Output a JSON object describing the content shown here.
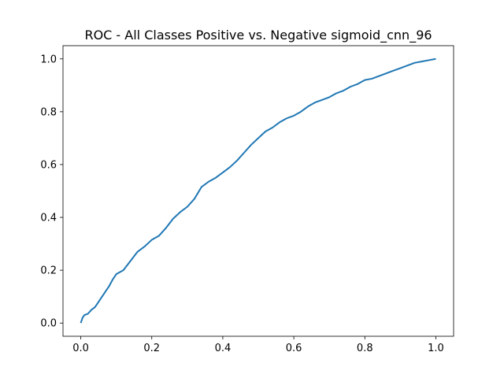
{
  "chart_data": {
    "type": "line",
    "title": "ROC - All Classes Positive vs. Negative sigmoid_cnn_96",
    "xlabel": "",
    "ylabel": "",
    "xlim": [
      -0.05,
      1.05
    ],
    "ylim": [
      -0.05,
      1.05
    ],
    "grid": false,
    "legend": "none",
    "x_ticks": [
      0.0,
      0.2,
      0.4,
      0.6,
      0.8,
      1.0
    ],
    "x_tick_labels": [
      "0.0",
      "0.2",
      "0.4",
      "0.6",
      "0.8",
      "1.0"
    ],
    "y_ticks": [
      0.0,
      0.2,
      0.4,
      0.6,
      0.8,
      1.0
    ],
    "y_tick_labels": [
      "0.0",
      "0.2",
      "0.4",
      "0.6",
      "0.8",
      "1.0"
    ],
    "series": [
      {
        "color": "#1f77b4",
        "x": [
          0.0,
          0.005,
          0.01,
          0.02,
          0.03,
          0.04,
          0.05,
          0.06,
          0.07,
          0.08,
          0.09,
          0.1,
          0.12,
          0.14,
          0.16,
          0.18,
          0.2,
          0.22,
          0.24,
          0.26,
          0.28,
          0.3,
          0.32,
          0.34,
          0.36,
          0.38,
          0.4,
          0.42,
          0.44,
          0.46,
          0.48,
          0.5,
          0.52,
          0.54,
          0.56,
          0.58,
          0.6,
          0.62,
          0.64,
          0.66,
          0.68,
          0.7,
          0.72,
          0.74,
          0.76,
          0.78,
          0.8,
          0.82,
          0.84,
          0.86,
          0.88,
          0.9,
          0.92,
          0.94,
          0.96,
          0.98,
          1.0
        ],
        "y": [
          0.0,
          0.02,
          0.03,
          0.035,
          0.05,
          0.06,
          0.08,
          0.1,
          0.12,
          0.14,
          0.165,
          0.185,
          0.2,
          0.235,
          0.27,
          0.29,
          0.315,
          0.33,
          0.36,
          0.395,
          0.42,
          0.44,
          0.47,
          0.515,
          0.535,
          0.55,
          0.57,
          0.59,
          0.615,
          0.645,
          0.675,
          0.7,
          0.725,
          0.74,
          0.76,
          0.775,
          0.785,
          0.8,
          0.82,
          0.835,
          0.845,
          0.855,
          0.87,
          0.88,
          0.895,
          0.905,
          0.92,
          0.925,
          0.935,
          0.945,
          0.955,
          0.965,
          0.975,
          0.985,
          0.99,
          0.995,
          1.0
        ]
      }
    ]
  }
}
